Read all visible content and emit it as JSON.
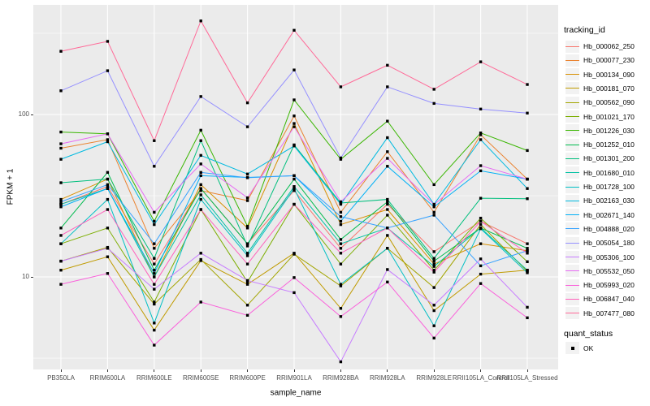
{
  "style": {
    "panel_bg": "#EBEBEB",
    "grid_color": "#FFFFFF",
    "point_color": "#000000",
    "tick_label_color": "#4D4D4D",
    "axis_title_color": "#000000",
    "legend_key_bg": "#F2F2F2"
  },
  "chart_data": {
    "type": "line",
    "title": "",
    "xlabel": "sample_name",
    "ylabel": "FPKM + 1",
    "y_scale": "log10",
    "y_tick_labels": [
      "100",
      "10"
    ],
    "y_tick_values": [
      100,
      10
    ],
    "y_minor_values": [
      316.23,
      31.62,
      3.16
    ],
    "ylim_px_note": "log axis, one decade = 200px",
    "grid": "on",
    "point_marker": "black-square",
    "legend_position": "right",
    "categories": [
      "PB350LA",
      "RRIM600LA",
      "RRIM600LE",
      "RRIM600SE",
      "RRIM600PE",
      "RRIM901LA",
      "RRIM928BA",
      "RRIM928LA",
      "RRIM928LE",
      "RRII105LA_Control",
      "RRII105LA_Stressed"
    ],
    "legend": {
      "title": "tracking_id"
    },
    "quant_legend": {
      "title": "quant_status",
      "items": [
        {
          "label": "OK",
          "marker": "black-square"
        }
      ]
    },
    "series": [
      {
        "name": "Hb_000062_250",
        "color": "#F8766D",
        "values": [
          28,
          36,
          12,
          35,
          16,
          34,
          15,
          28,
          14.3,
          22,
          16
        ]
      },
      {
        "name": "Hb_000077_230",
        "color": "#EA8331",
        "values": [
          62,
          70,
          15,
          34,
          29.5,
          98,
          25,
          59,
          25,
          75,
          40
        ]
      },
      {
        "name": "Hb_000134_090",
        "color": "#D89000",
        "values": [
          30,
          40,
          10,
          37,
          20,
          88,
          21,
          26,
          12,
          16,
          14.5
        ]
      },
      {
        "name": "Hb_000181_070",
        "color": "#C09B00",
        "values": [
          11,
          13.3,
          4.7,
          12.6,
          9,
          14,
          6.4,
          18,
          6.2,
          10.4,
          11
        ]
      },
      {
        "name": "Hb_000562_090",
        "color": "#A3A500",
        "values": [
          12.5,
          15.2,
          6.8,
          12.8,
          6.7,
          13.8,
          8.8,
          15,
          8.6,
          21,
          10.8
        ]
      },
      {
        "name": "Hb_001021_170",
        "color": "#7CAE00",
        "values": [
          16,
          20,
          7,
          26,
          9.3,
          28,
          12,
          24,
          11,
          23,
          12.4
        ]
      },
      {
        "name": "Hb_001226_030",
        "color": "#39B600",
        "values": [
          78,
          76,
          22,
          80,
          20.5,
          123,
          53,
          91,
          37,
          77,
          60
        ]
      },
      {
        "name": "Hb_001252_010",
        "color": "#00BB4E",
        "values": [
          20,
          44,
          11,
          35,
          16,
          40,
          17,
          29,
          12.5,
          20,
          15
        ]
      },
      {
        "name": "Hb_001301_200",
        "color": "#00BF7D",
        "values": [
          38,
          40,
          13,
          69,
          15.5,
          65,
          28.5,
          30,
          13,
          30.5,
          30.3
        ]
      },
      {
        "name": "Hb_001680_010",
        "color": "#00C1A3",
        "values": [
          28,
          35,
          10,
          32,
          14,
          36,
          16,
          20,
          11.6,
          20,
          11
        ]
      },
      {
        "name": "Hb_001728_100",
        "color": "#00BFC4",
        "values": [
          16,
          30,
          5.2,
          30,
          13.5,
          35,
          9,
          15,
          5,
          19.8,
          10.6
        ]
      },
      {
        "name": "Hb_002163_030",
        "color": "#00BAE0",
        "values": [
          53,
          68,
          21,
          56,
          43,
          64,
          28,
          72,
          28,
          70,
          35
        ]
      },
      {
        "name": "Hb_002671_140",
        "color": "#00B0F6",
        "values": [
          27,
          35,
          10.5,
          42,
          41,
          42,
          22,
          48,
          27,
          45,
          40
        ]
      },
      {
        "name": "Hb_004888_020",
        "color": "#35A2FF",
        "values": [
          29,
          37,
          16,
          44,
          40.8,
          42,
          23.5,
          20,
          24,
          11.7,
          14.5
        ]
      },
      {
        "name": "Hb_005054_180",
        "color": "#9590FF",
        "values": [
          140,
          186,
          48,
          129,
          84,
          188,
          54,
          148,
          117,
          108,
          102
        ]
      },
      {
        "name": "Hb_005306_100",
        "color": "#C77CFF",
        "values": [
          12.5,
          15,
          8.4,
          14,
          9.5,
          8,
          3,
          11.1,
          6.7,
          12.9,
          6.5
        ]
      },
      {
        "name": "Hb_005532_050",
        "color": "#E76BF3",
        "values": [
          66,
          76,
          25,
          49.6,
          30.7,
          84,
          29,
          53.7,
          27.9,
          48.4,
          40
        ]
      },
      {
        "name": "Hb_005993_020",
        "color": "#FA62DB",
        "values": [
          9,
          10.5,
          3.8,
          7,
          5.8,
          9.9,
          5.7,
          9.3,
          4.2,
          9.1,
          5.6
        ]
      },
      {
        "name": "Hb_006847_040",
        "color": "#FF62BC",
        "values": [
          18,
          26,
          9,
          26,
          12,
          28,
          14,
          20,
          10.7,
          22,
          14
        ]
      },
      {
        "name": "Hb_007477_080",
        "color": "#FF6A98",
        "values": [
          245,
          282,
          69,
          377,
          118,
          330,
          148,
          201,
          143,
          211,
          153
        ]
      }
    ]
  }
}
